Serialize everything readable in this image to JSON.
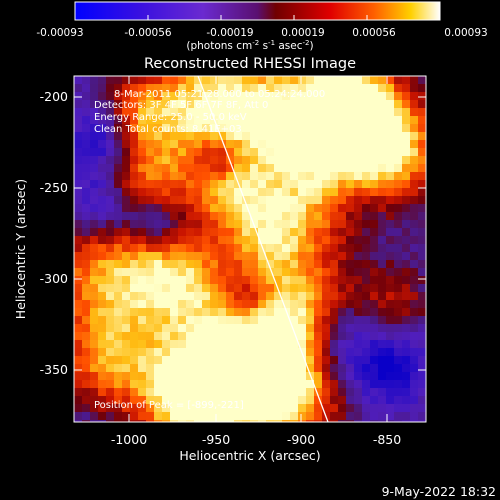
{
  "colorbar": {
    "ticks": [
      "-0.00093",
      "-0.00056",
      "-0.00019",
      "0.00019",
      "0.00056",
      "0.00093"
    ],
    "units_main": "(photons cm",
    "units_sup1": "-2",
    "units_mid": " s",
    "units_sup2": "-1",
    "units_end": " asec",
    "units_sup3": "-2",
    "units_close": ")"
  },
  "image": {
    "title": "Reconstructed RHESSI Image",
    "info": [
      "8-Mar-2011 05:21:28.000 to 05:24:24.000",
      "Detectors: 3F 4F 5F 6F 7F 8F, Att 0",
      "Energy Range: 25.0 - 50.0 keV",
      "Clean     Total counts: 8.41E+03"
    ],
    "peak": "Position of Peak = [-899,-221]",
    "xlabel": "Heliocentric X (arcsec)",
    "ylabel": "Heliocentric Y (arcsec)",
    "xticks": [
      "-1000",
      "-950",
      "-900",
      "-850"
    ],
    "yticks": [
      "-200",
      "-250",
      "-300",
      "-350"
    ],
    "xrange": [
      -1030,
      -830
    ],
    "yrange": [
      -380,
      -185
    ]
  },
  "footer": {
    "timestamp": "9-May-2022 18:32"
  },
  "colors": {
    "foreground": "#ffffff",
    "background": "#000000"
  }
}
